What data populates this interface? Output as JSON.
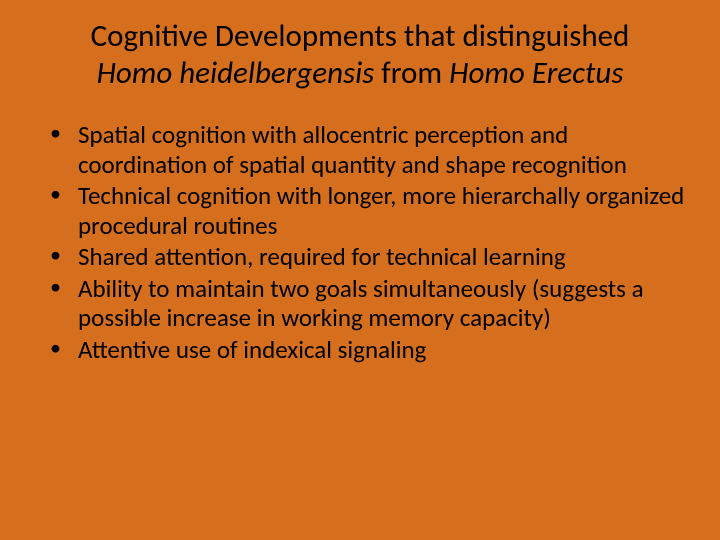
{
  "background_color": "#d56e1d",
  "text_color": "#000000",
  "title": {
    "line1_plain": "Cognitive Developments that distinguished",
    "species1": "Homo heidelbergensis",
    "mid": " from ",
    "species2": "Homo Erectus",
    "fontsize": 31
  },
  "bullets": {
    "fontsize": 25,
    "items": [
      "Spatial cognition with allocentric perception and coordination of spatial quantity and shape recognition",
      "Technical cognition with longer, more hierarchally organized procedural routines",
      "Shared attention, required for technical learning",
      "Ability to maintain two goals simultaneously (suggests a possible increase in working memory capacity)",
      "Attentive use of indexical signaling"
    ]
  }
}
